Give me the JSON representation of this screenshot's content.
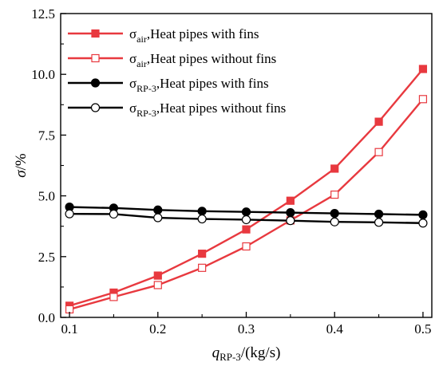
{
  "chart_data": {
    "type": "line",
    "x": [
      0.1,
      0.15,
      0.2,
      0.25,
      0.3,
      0.35,
      0.4,
      0.45,
      0.5
    ],
    "xlim": [
      0.09,
      0.51
    ],
    "ylim": [
      0.0,
      12.5
    ],
    "xticks": [
      "0.1",
      "0.2",
      "0.3",
      "0.4",
      "0.5"
    ],
    "yticks": [
      "0.0",
      "2.5",
      "5.0",
      "7.5",
      "10.0",
      "12.5"
    ],
    "xlabel": {
      "symbol": "q",
      "sub": "RP-3",
      "rest": "/(kg/s)"
    },
    "ylabel": {
      "symbol": "σ",
      "rest": "/%"
    },
    "legend_position": "top-left",
    "grid": false,
    "series": [
      {
        "name": "σair,Heat pipes with fins",
        "label_symbol": "σ",
        "label_sub": "air",
        "label_rest": ",Heat pipes with fins",
        "color": "#e8393f",
        "marker": "square",
        "filled": true,
        "values": [
          0.48,
          1.02,
          1.72,
          2.62,
          3.62,
          4.8,
          6.12,
          8.05,
          10.22
        ]
      },
      {
        "name": "σair,Heat pipes without fins",
        "label_symbol": "σ",
        "label_sub": "air",
        "label_rest": ",Heat pipes without fins",
        "color": "#e8393f",
        "marker": "square",
        "filled": false,
        "values": [
          0.33,
          0.84,
          1.33,
          2.04,
          2.92,
          3.99,
          5.05,
          6.8,
          8.98
        ]
      },
      {
        "name": "σRP-3,Heat pipes with fins",
        "label_symbol": "σ",
        "label_sub": "RP-3",
        "label_rest": ",Heat pipes with fins",
        "color": "#000000",
        "marker": "circle",
        "filled": true,
        "values": [
          4.54,
          4.5,
          4.42,
          4.37,
          4.34,
          4.31,
          4.28,
          4.25,
          4.22
        ]
      },
      {
        "name": "σRP-3,Heat pipes without fins",
        "label_symbol": "σ",
        "label_sub": "RP-3",
        "label_rest": ",Heat pipes without fins",
        "color": "#000000",
        "marker": "circle",
        "filled": false,
        "values": [
          4.26,
          4.25,
          4.1,
          4.05,
          4.02,
          3.98,
          3.93,
          3.91,
          3.88
        ]
      }
    ]
  }
}
